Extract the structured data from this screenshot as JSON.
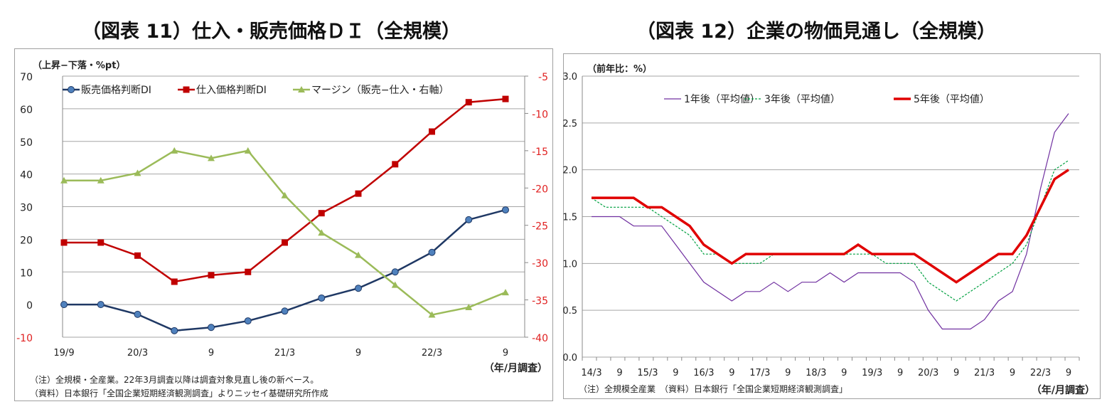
{
  "chart_data": [
    {
      "type": "line",
      "title": "（図表 11）仕入・販売価格ＤＩ（全規模）",
      "ylabel": "（上昇−下落・%pt）",
      "xlabel": "（年/月調査）",
      "categories": [
        "19/9",
        "19/12",
        "20/3",
        "20/6",
        "20/9",
        "20/12",
        "21/3",
        "21/6",
        "21/9",
        "21/12",
        "22/3",
        "22/6",
        "22/9"
      ],
      "xtick_labels": [
        "19/9",
        "",
        "20/3",
        "",
        "9",
        "",
        "21/3",
        "",
        "9",
        "",
        "22/3",
        "",
        "9"
      ],
      "ylim": [
        -10,
        70
      ],
      "yticks": [
        -10,
        0,
        10,
        20,
        30,
        40,
        50,
        60,
        70
      ],
      "y2lim": [
        -40,
        -5
      ],
      "y2ticks": [
        -40,
        -35,
        -30,
        -25,
        -20,
        -15,
        -10,
        -5
      ],
      "y2_color": "#e02020",
      "grid": true,
      "legend": "top",
      "series": [
        {
          "name": "販売価格判断DI",
          "axis": "left",
          "color": "#1f3864",
          "marker": "circle",
          "values": [
            0,
            0,
            -3,
            -8,
            -7,
            -5,
            -2,
            2,
            5,
            10,
            16,
            26,
            29
          ]
        },
        {
          "name": "仕入価格判断DI",
          "axis": "left",
          "color": "#c00000",
          "marker": "square",
          "values": [
            19,
            19,
            15,
            7,
            9,
            10,
            19,
            28,
            34,
            43,
            53,
            62,
            63
          ]
        },
        {
          "name": "マージン（販売−仕入・右軸）",
          "axis": "right",
          "color": "#9bbb59",
          "marker": "triangle",
          "values": [
            -19,
            -19,
            -18,
            -15,
            -16,
            -15,
            -21,
            -26,
            -29,
            -33,
            -37,
            -36,
            -34
          ]
        }
      ],
      "notes": [
        "（注）全規模・全産業。22年3月調査以降は調査対象見直し後の新ベース。",
        "（資料）日本銀行「全国企業短期経済観測調査」よりニッセイ基礎研究所作成"
      ]
    },
    {
      "type": "line",
      "title": "（図表 12）企業の物価見通し（全規模）",
      "ylabel": "（前年比：%）",
      "xlabel": "（年/月調査）",
      "categories": [
        "14/3",
        "14/6",
        "14/9",
        "14/12",
        "15/3",
        "15/6",
        "15/9",
        "15/12",
        "16/3",
        "16/6",
        "16/9",
        "16/12",
        "17/3",
        "17/6",
        "17/9",
        "17/12",
        "18/3",
        "18/6",
        "18/9",
        "18/12",
        "19/3",
        "19/6",
        "19/9",
        "19/12",
        "20/3",
        "20/6",
        "20/9",
        "20/12",
        "21/3",
        "21/6",
        "21/9",
        "21/12",
        "22/3",
        "22/6",
        "22/9"
      ],
      "xtick_labels": [
        "14/3",
        "",
        "9",
        "",
        "15/3",
        "",
        "9",
        "",
        "16/3",
        "",
        "9",
        "",
        "17/3",
        "",
        "9",
        "",
        "18/3",
        "",
        "9",
        "",
        "19/3",
        "",
        "9",
        "",
        "20/3",
        "",
        "9",
        "",
        "21/3",
        "",
        "9",
        "",
        "22/3",
        "",
        "9"
      ],
      "ylim": [
        0,
        3
      ],
      "yticks": [
        "0.0",
        "0.5",
        "1.0",
        "1.5",
        "2.0",
        "2.5",
        "3.0"
      ],
      "grid": true,
      "legend": "top",
      "series": [
        {
          "name": "1年後（平均値）",
          "color": "#7030a0",
          "style": "thin",
          "values": [
            1.5,
            1.5,
            1.5,
            1.4,
            1.4,
            1.4,
            1.2,
            1.0,
            0.8,
            0.7,
            0.6,
            0.7,
            0.7,
            0.8,
            0.7,
            0.8,
            0.8,
            0.9,
            0.8,
            0.9,
            0.9,
            0.9,
            0.9,
            0.8,
            0.5,
            0.3,
            0.3,
            0.3,
            0.4,
            0.6,
            0.7,
            1.1,
            1.8,
            2.4,
            2.6
          ]
        },
        {
          "name": "3年後（平均値）",
          "color": "#00a040",
          "style": "dashed",
          "values": [
            1.7,
            1.6,
            1.6,
            1.6,
            1.6,
            1.5,
            1.4,
            1.3,
            1.1,
            1.1,
            1.0,
            1.0,
            1.0,
            1.1,
            1.1,
            1.1,
            1.1,
            1.1,
            1.1,
            1.1,
            1.1,
            1.0,
            1.0,
            1.0,
            0.8,
            0.7,
            0.6,
            0.7,
            0.8,
            0.9,
            1.0,
            1.2,
            1.6,
            2.0,
            2.1
          ]
        },
        {
          "name": "5年後（平均値）",
          "color": "#e00000",
          "style": "thick",
          "values": [
            1.7,
            1.7,
            1.7,
            1.7,
            1.6,
            1.6,
            1.5,
            1.4,
            1.2,
            1.1,
            1.0,
            1.1,
            1.1,
            1.1,
            1.1,
            1.1,
            1.1,
            1.1,
            1.1,
            1.2,
            1.1,
            1.1,
            1.1,
            1.1,
            1.0,
            0.9,
            0.8,
            0.9,
            1.0,
            1.1,
            1.1,
            1.3,
            1.6,
            1.9,
            2.0
          ]
        }
      ],
      "notes": [
        "（注）全規模全産業　（資料）日本銀行「全国企業短期経済観測調査」"
      ]
    }
  ]
}
